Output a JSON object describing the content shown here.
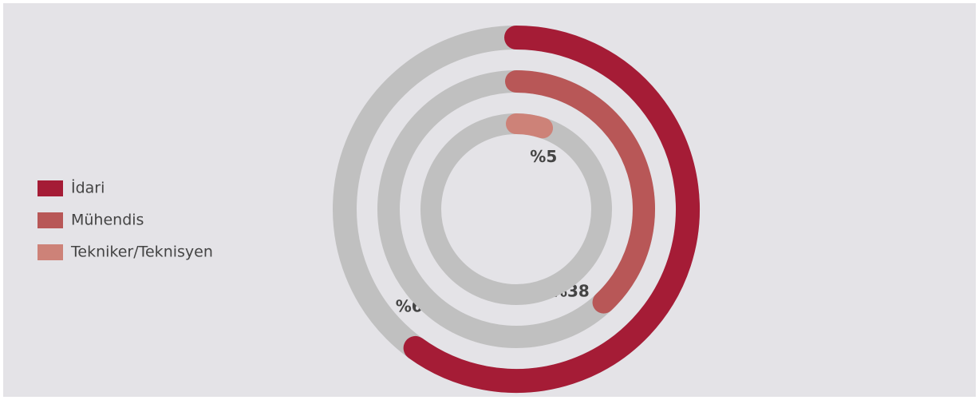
{
  "chart_data": {
    "type": "radialBar",
    "series": [
      {
        "name": "İdari",
        "color": "#a51c36",
        "values": [
          60
        ],
        "value_labels": [
          "%60"
        ]
      },
      {
        "name": "Mühendis",
        "color": "#b85757",
        "values": [
          38
        ],
        "value_labels": [
          "%38"
        ]
      },
      {
        "name": "Tekniker/Teknisyen",
        "color": "#cd8278",
        "values": [
          5
        ],
        "value_labels": [
          "%5"
        ]
      }
    ],
    "legend": "left"
  }
}
